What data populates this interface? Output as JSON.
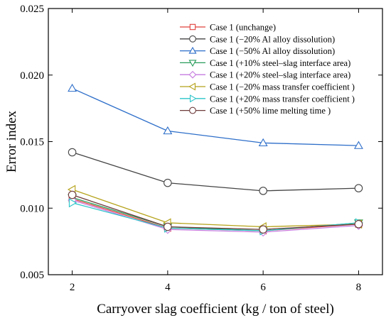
{
  "chart_data": {
    "type": "line",
    "title": "",
    "xlabel": "Carryover slag coefficient (kg / ton of steel)",
    "ylabel": "Error index",
    "x": [
      2,
      4,
      6,
      8
    ],
    "xlim": [
      1.5,
      8.5
    ],
    "ylim": [
      0.005,
      0.025
    ],
    "xticks": [
      "2",
      "4",
      "6",
      "8"
    ],
    "yticks": [
      "0.005",
      "0.010",
      "0.015",
      "0.020",
      "0.025"
    ],
    "grid": false,
    "legend_position": "top-right",
    "series": [
      {
        "name": "Case 1 (unchange)",
        "color": "#e0403c",
        "marker": "square",
        "values": [
          0.0107,
          0.0085,
          0.0083,
          0.0088
        ]
      },
      {
        "name": "Case 1 (−20% Al alloy dissolution)",
        "color": "#444444",
        "marker": "circle",
        "values": [
          0.0142,
          0.0119,
          0.0113,
          0.0115
        ]
      },
      {
        "name": "Case 1 (−50% Al alloy dissolution)",
        "color": "#2d6ec9",
        "marker": "triangle-up",
        "values": [
          0.019,
          0.0158,
          0.0149,
          0.0147
        ]
      },
      {
        "name": "Case 1 (+10% steel–slag interface area)",
        "color": "#2a9d5c",
        "marker": "triangle-down",
        "values": [
          0.0108,
          0.0086,
          0.0083,
          0.0089
        ]
      },
      {
        "name": "Case 1 (+20% steel–slag interface area)",
        "color": "#c77ce0",
        "marker": "diamond",
        "values": [
          0.0106,
          0.0084,
          0.0082,
          0.0087
        ]
      },
      {
        "name": "Case 1 (−20% mass transfer coefficient )",
        "color": "#b5a21a",
        "marker": "triangle-left",
        "values": [
          0.0114,
          0.0089,
          0.0086,
          0.0088
        ]
      },
      {
        "name": "Case 1 (+20% mass transfer coefficient )",
        "color": "#2cc4c9",
        "marker": "triangle-right",
        "values": [
          0.0104,
          0.0085,
          0.0083,
          0.0089
        ]
      },
      {
        "name": "Case 1 (+50% lime melting time )",
        "color": "#6e3b3b",
        "marker": "circle",
        "values": [
          0.011,
          0.0086,
          0.0084,
          0.0088
        ]
      }
    ]
  }
}
